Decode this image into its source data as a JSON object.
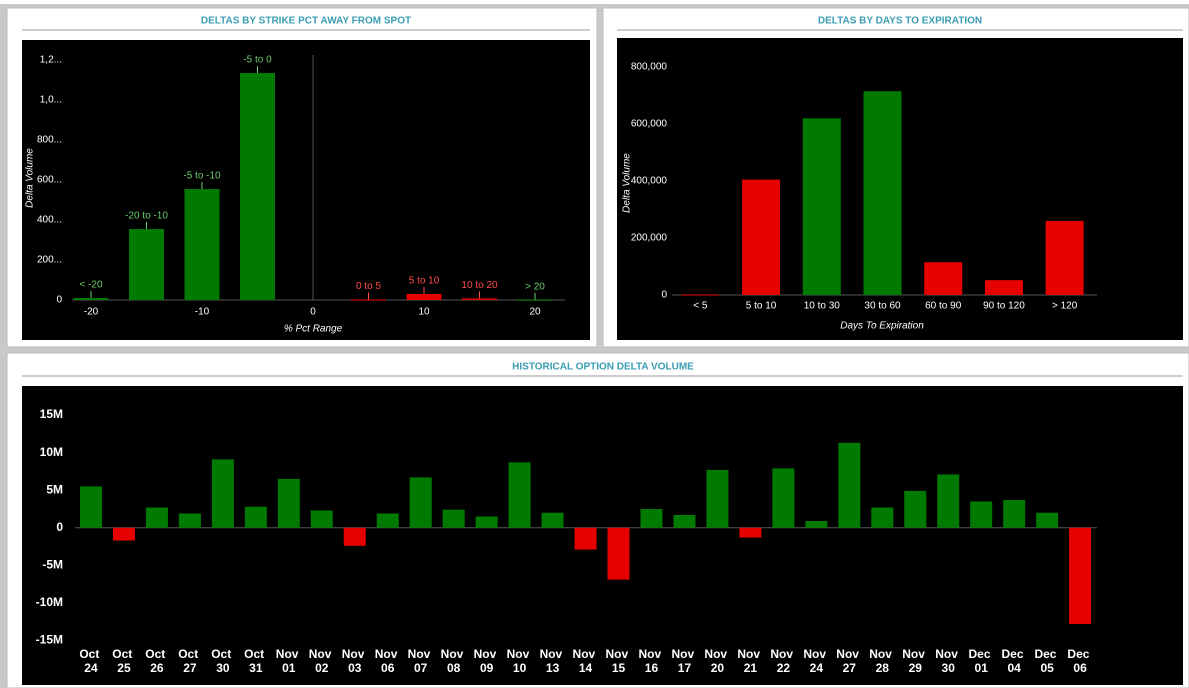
{
  "chart_data": [
    {
      "type": "bar",
      "title": "DELTAS BY STRIKE PCT AWAY FROM SPOT",
      "x": [
        -20,
        -15,
        -10,
        -5,
        5,
        10,
        15,
        20
      ],
      "categories": [
        "< -20",
        "-20 to -10",
        "-5 to -10",
        "-5 to 0",
        "0 to 5",
        "5 to 10",
        "10 to 20",
        "> 20"
      ],
      "values": [
        10000,
        355000,
        555000,
        1135000,
        2000,
        30000,
        8000,
        1000
      ],
      "colors": [
        "#007a00",
        "#007a00",
        "#007a00",
        "#007a00",
        "#e60000",
        "#e60000",
        "#e60000",
        "#007a00"
      ],
      "label_colors": [
        "#6acb6a",
        "#6acb6a",
        "#6acb6a",
        "#6acb6a",
        "#ff4a4a",
        "#ff4a4a",
        "#ff4a4a",
        "#6acb6a"
      ],
      "xlabel": "% Pct Range",
      "ylabel": "Delta Volume",
      "xlim": [
        -25,
        25
      ],
      "xticks": [
        -20,
        -10,
        0,
        10,
        20
      ],
      "ylim": [
        0,
        1250000
      ],
      "yticks": [
        0,
        {
          "value": 200000,
          "label": "200..."
        },
        {
          "value": 400000,
          "label": "400..."
        },
        {
          "value": 600000,
          "label": "600..."
        },
        {
          "value": 800000,
          "label": "800..."
        },
        {
          "value": 1000000,
          "label": "1,0..."
        },
        {
          "value": 1200000,
          "label": "1,2..."
        }
      ]
    },
    {
      "type": "bar",
      "title": "DELTAS BY DAYS TO EXPIRATION",
      "categories": [
        "< 5",
        "5 to 10",
        "10 to 30",
        "30 to 60",
        "60 to 90",
        "90 to 120",
        "> 120"
      ],
      "values": [
        2000,
        405000,
        620000,
        715000,
        115000,
        52000,
        260000
      ],
      "colors": [
        "#e60000",
        "#e60000",
        "#007a00",
        "#007a00",
        "#e60000",
        "#e60000",
        "#e60000"
      ],
      "xlabel": "Days To Expiration",
      "ylabel": "Delta Volume",
      "ylim": [
        0,
        850000
      ],
      "yticks": [
        0,
        {
          "value": 200000,
          "label": "200,000"
        },
        {
          "value": 400000,
          "label": "400,000"
        },
        {
          "value": 600000,
          "label": "600,000"
        },
        {
          "value": 800000,
          "label": "800,000"
        }
      ]
    },
    {
      "type": "bar",
      "title": "HISTORICAL OPTION DELTA VOLUME",
      "categories": [
        "Oct 24",
        "Oct 25",
        "Oct 26",
        "Oct 27",
        "Oct 30",
        "Oct 31",
        "Nov 01",
        "Nov 02",
        "Nov 03",
        "Nov 06",
        "Nov 07",
        "Nov 08",
        "Nov 09",
        "Nov 10",
        "Nov 13",
        "Nov 14",
        "Nov 15",
        "Nov 16",
        "Nov 17",
        "Nov 20",
        "Nov 21",
        "Nov 22",
        "Nov 24",
        "Nov 27",
        "Nov 28",
        "Nov 29",
        "Nov 30",
        "Dec 01",
        "Dec 04",
        "Dec 05",
        "Dec 06"
      ],
      "values": [
        5500000,
        -1700000,
        2700000,
        1900000,
        9100000,
        2800000,
        6500000,
        2300000,
        -2400000,
        1900000,
        6700000,
        2400000,
        1500000,
        8700000,
        2000000,
        -2900000,
        -6900000,
        2500000,
        1700000,
        7700000,
        -1300000,
        7900000,
        900000,
        11300000,
        2700000,
        4900000,
        7100000,
        3500000,
        3700000,
        2000000,
        -12800000
      ],
      "colors": [
        "#007a00",
        "#e60000",
        "#007a00",
        "#007a00",
        "#007a00",
        "#007a00",
        "#007a00",
        "#007a00",
        "#e60000",
        "#007a00",
        "#007a00",
        "#007a00",
        "#007a00",
        "#007a00",
        "#007a00",
        "#e60000",
        "#e60000",
        "#007a00",
        "#007a00",
        "#007a00",
        "#e60000",
        "#007a00",
        "#007a00",
        "#007a00",
        "#007a00",
        "#007a00",
        "#007a00",
        "#007a00",
        "#007a00",
        "#007a00",
        "#e60000"
      ],
      "ylim": [
        -15600000,
        17000000
      ],
      "yticks": [
        {
          "value": -15000000,
          "label": "-15M"
        },
        {
          "value": -10000000,
          "label": "-10M"
        },
        {
          "value": -5000000,
          "label": "-5M"
        },
        0,
        {
          "value": 5000000,
          "label": "5M"
        },
        {
          "value": 10000000,
          "label": "10M"
        },
        {
          "value": 15000000,
          "label": "15M"
        }
      ]
    }
  ]
}
